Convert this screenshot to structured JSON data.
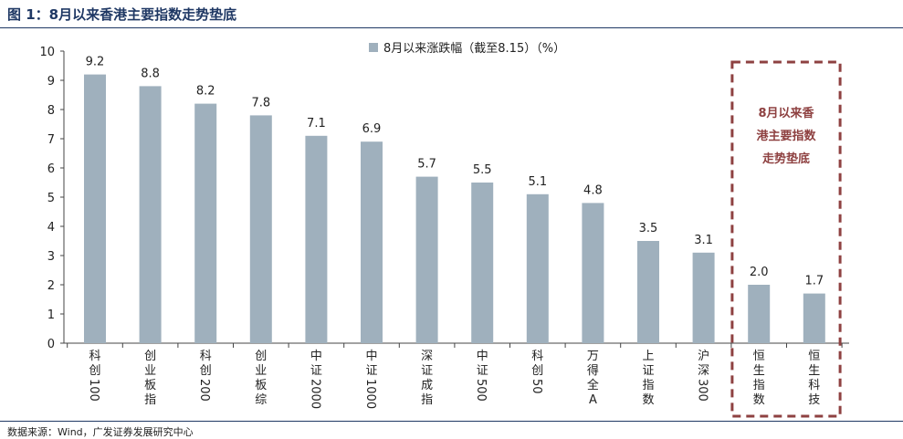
{
  "figure_title": "图 1：8月以来香港主要指数走势垫底",
  "source": "数据来源：Wind，广发证券发展研究中心",
  "colors": {
    "bar": "#9fb0bd",
    "highlight": "#8e4141",
    "title": "#1f3864"
  },
  "chart_data": {
    "type": "bar",
    "title": "",
    "xlabel": "",
    "ylabel": "",
    "ylim": [
      0,
      10
    ],
    "yticks": [
      0,
      1,
      2,
      3,
      4,
      5,
      6,
      7,
      8,
      9,
      10
    ],
    "legend": {
      "position": "top-center",
      "label": "8月以来涨跌幅（截至8.15）（%）"
    },
    "grid": false,
    "categories": [
      "科创100",
      "创业板指",
      "科创200",
      "创业板综",
      "中证2000",
      "中证1000",
      "深证成指",
      "中证500",
      "科创50",
      "万得全A",
      "上证指数",
      "沪深300",
      "恒生指数",
      "恒生科技"
    ],
    "values": [
      9.2,
      8.8,
      8.2,
      7.8,
      7.1,
      6.9,
      5.7,
      5.5,
      5.1,
      4.8,
      3.5,
      3.1,
      2.0,
      1.7
    ],
    "value_labels": [
      "9.2",
      "8.8",
      "8.2",
      "7.8",
      "7.1",
      "6.9",
      "5.7",
      "5.5",
      "5.1",
      "4.8",
      "3.5",
      "3.1",
      "2.0",
      "1.7"
    ],
    "highlight": {
      "categories": [
        "恒生指数",
        "恒生科技"
      ],
      "annotation": [
        "8月以来香",
        "港主要指数",
        "走势垫底"
      ]
    }
  }
}
